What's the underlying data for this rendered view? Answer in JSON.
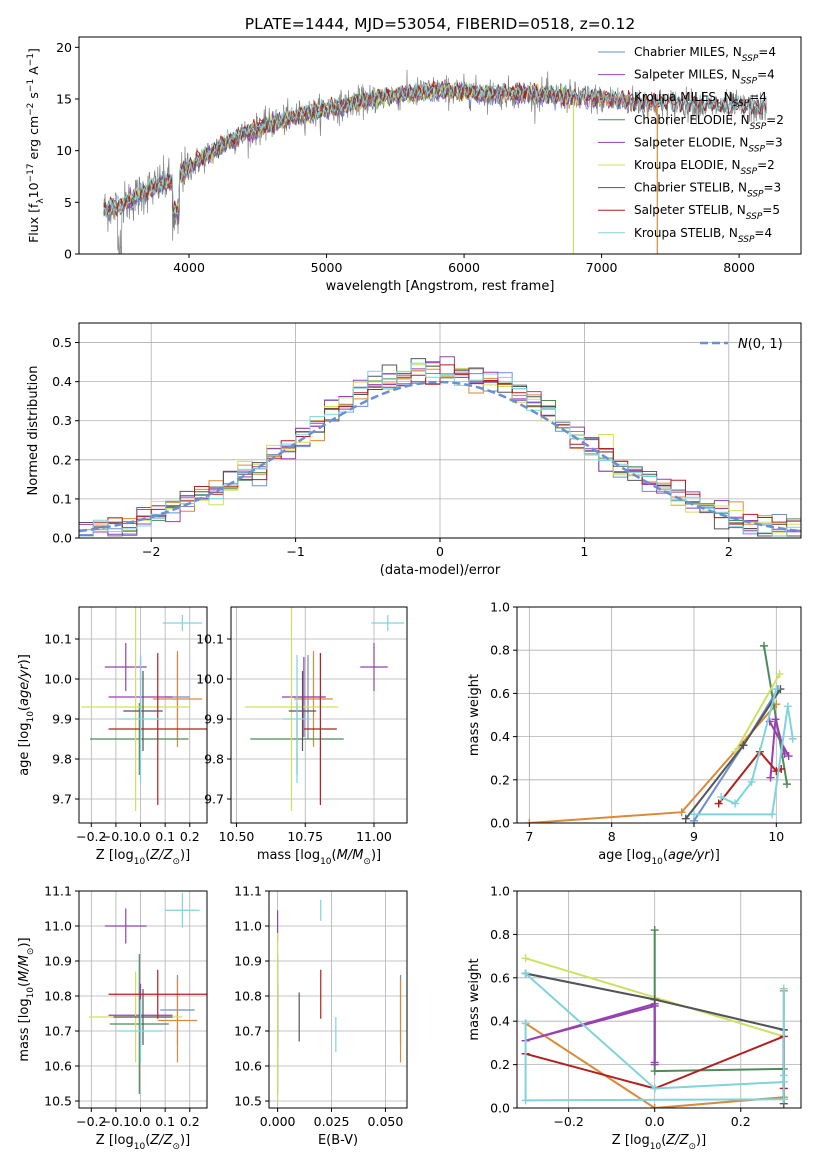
{
  "colors": {
    "Chabrier MILES": "#6a8fd4",
    "Salpeter MILES": "#8e44ad",
    "Kroupa MILES": "#d98a3a",
    "Chabrier ELODIE": "#4f8a58",
    "Salpeter ELODIE": "#9b3fb2",
    "Kroupa ELODIE": "#cfe060",
    "Chabrier STELIB": "#555555",
    "Salpeter STELIB": "#b21f1f",
    "Kroupa STELIB": "#7fd3dc",
    "gauss": "#6a8fd4",
    "grid": "#b0b0b0"
  },
  "chart_data": [
    {
      "id": "spectrum",
      "type": "line",
      "title": "PLATE=1444, MJD=53054, FIBERID=0518, z=0.12",
      "xlabel": "wavelength [Angstrom, rest frame]",
      "ylabel_parts": [
        "Flux [f",
        "λ",
        "10",
        "−17",
        " erg cm",
        "−2",
        " s",
        "−1",
        " A",
        "−1",
        "]"
      ],
      "xlim": [
        3200,
        8450
      ],
      "ylim": [
        0,
        21
      ],
      "xticks": [
        4000,
        5000,
        6000,
        7000,
        8000
      ],
      "yticks": [
        0,
        5,
        10,
        15,
        20
      ],
      "grid": false,
      "legend_position": "right",
      "series": [
        {
          "name": "Chabrier MILES",
          "nssp": "4"
        },
        {
          "name": "Salpeter MILES",
          "nssp": "4"
        },
        {
          "name": "Kroupa MILES",
          "nssp": "4"
        },
        {
          "name": "Chabrier ELODIE",
          "nssp": "2"
        },
        {
          "name": "Salpeter ELODIE",
          "nssp": "3"
        },
        {
          "name": "Kroupa ELODIE",
          "nssp": "2"
        },
        {
          "name": "Chabrier STELIB",
          "nssp": "3"
        },
        {
          "name": "Salpeter STELIB",
          "nssp": "5"
        },
        {
          "name": "Kroupa STELIB",
          "nssp": "4"
        }
      ],
      "envelope": {
        "x": [
          3380,
          3500,
          3600,
          3700,
          3800,
          3900,
          4000,
          4100,
          4200,
          4300,
          4400,
          4600,
          4800,
          5000,
          5200,
          5400,
          5600,
          5800,
          6000,
          6200,
          6400,
          6600,
          6800,
          7000,
          7200,
          7400,
          7600,
          7800,
          8000,
          8200
        ],
        "y": [
          4.3,
          4.6,
          5.4,
          6.2,
          6.8,
          7.2,
          8.4,
          9.3,
          10.2,
          11.0,
          11.6,
          12.6,
          13.4,
          14.0,
          14.6,
          15.2,
          15.5,
          15.8,
          15.7,
          15.5,
          15.6,
          15.4,
          15.2,
          15.0,
          14.8,
          14.6,
          14.5,
          14.3,
          14.2,
          14.0
        ]
      },
      "data_noise_amplitude": 1.2
    },
    {
      "id": "residuals",
      "type": "area",
      "xlabel": "(data-model)/error",
      "ylabel": "Normed distribution",
      "xlim": [
        -2.5,
        2.5
      ],
      "ylim": [
        0,
        0.55
      ],
      "xticks": [
        -2,
        -1,
        0,
        1,
        2
      ],
      "yticks": [
        0.0,
        0.1,
        0.2,
        0.3,
        0.4,
        0.5
      ],
      "grid": true,
      "legend_position": "top-right",
      "legend_label": "N(0, 1)",
      "bin_width": 0.1,
      "histtype": "step"
    },
    {
      "id": "age-vs-Z",
      "type": "scatter",
      "xlabel": "Z [log10(Z/Z⊙)]",
      "ylabel": "age  [log10(age/yr)]",
      "xlim": [
        -0.25,
        0.27
      ],
      "ylim": [
        9.64,
        10.18
      ],
      "xticks": [
        -0.2,
        -0.1,
        0.0,
        0.1,
        0.2
      ],
      "yticks": [
        9.7,
        9.8,
        9.9,
        10.0,
        10.1
      ],
      "grid": true,
      "points": [
        {
          "series": "Chabrier MILES",
          "x": 0.15,
          "xerr": 0.05,
          "y": 9.955,
          "yerr": 0.105
        },
        {
          "series": "Salpeter MILES",
          "x": -0.06,
          "xerr": 0.085,
          "y": 10.03,
          "yerr": 0.06
        },
        {
          "series": "Kroupa MILES",
          "x": 0.15,
          "xerr": 0.1,
          "y": 9.95,
          "yerr": 0.12
        },
        {
          "series": "Chabrier ELODIE",
          "x": -0.005,
          "xerr": 0.2,
          "y": 9.85,
          "yerr": 0.09
        },
        {
          "series": "Salpeter ELODIE",
          "x": 0.0,
          "xerr": 0.13,
          "y": 9.955,
          "yerr": 0.1
        },
        {
          "series": "Kroupa ELODIE",
          "x": -0.02,
          "xerr": 0.22,
          "y": 9.93,
          "yerr": 0.26
        },
        {
          "series": "Chabrier STELIB",
          "x": 0.01,
          "xerr": 0.08,
          "y": 9.92,
          "yerr": 0.1
        },
        {
          "series": "Salpeter STELIB",
          "x": 0.07,
          "xerr": 0.2,
          "y": 9.875,
          "yerr": 0.19
        },
        {
          "series": "Kroupa STELIB",
          "x": 0.0,
          "xerr": 0.09,
          "y": 9.9,
          "yerr": 0.16
        },
        {
          "series": "Kroupa STELIB",
          "x": 0.17,
          "xerr": 0.08,
          "y": 10.14,
          "yerr": 0.02
        }
      ]
    },
    {
      "id": "age-vs-mass",
      "type": "scatter",
      "xlabel": "mass [log10(M/M⊙)]",
      "ylabel": "",
      "xlim": [
        10.48,
        11.12
      ],
      "ylim": [
        9.64,
        10.18
      ],
      "xticks": [
        10.5,
        10.75,
        11.0
      ],
      "tick_labels": [
        "10.50",
        "10.75",
        "11.00"
      ],
      "yticks": [
        9.7,
        9.8,
        9.9,
        10.0,
        10.1
      ],
      "grid": true,
      "points": [
        {
          "series": "Chabrier MILES",
          "x": 10.76,
          "xerr": 0.06,
          "y": 9.955,
          "yerr": 0.105
        },
        {
          "series": "Salpeter MILES",
          "x": 11.0,
          "xerr": 0.05,
          "y": 10.03,
          "yerr": 0.06
        },
        {
          "series": "Kroupa MILES",
          "x": 10.78,
          "xerr": 0.07,
          "y": 9.95,
          "yerr": 0.12
        },
        {
          "series": "Chabrier ELODIE",
          "x": 10.72,
          "xerr": 0.17,
          "y": 9.85,
          "yerr": 0.09
        },
        {
          "series": "Salpeter ELODIE",
          "x": 10.745,
          "xerr": 0.08,
          "y": 9.955,
          "yerr": 0.1
        },
        {
          "series": "Kroupa ELODIE",
          "x": 10.7,
          "xerr": 0.17,
          "y": 9.93,
          "yerr": 0.26
        },
        {
          "series": "Chabrier STELIB",
          "x": 10.74,
          "xerr": 0.05,
          "y": 9.92,
          "yerr": 0.1
        },
        {
          "series": "Salpeter STELIB",
          "x": 10.805,
          "xerr": 0.06,
          "y": 9.875,
          "yerr": 0.19
        },
        {
          "series": "Kroupa STELIB",
          "x": 10.72,
          "xerr": 0.05,
          "y": 9.9,
          "yerr": 0.16
        },
        {
          "series": "Kroupa STELIB",
          "x": 11.05,
          "xerr": 0.06,
          "y": 10.14,
          "yerr": 0.02
        }
      ]
    },
    {
      "id": "weight-vs-age",
      "type": "line",
      "xlabel": "age  [log10(age/yr)]",
      "ylabel": "mass weight",
      "xlim": [
        6.85,
        10.3
      ],
      "ylim": [
        0,
        1
      ],
      "xticks": [
        7,
        8,
        9,
        10
      ],
      "yticks": [
        0.0,
        0.2,
        0.4,
        0.6,
        0.8,
        1.0
      ],
      "grid": true,
      "series": [
        {
          "name": "Chabrier MILES",
          "x": [
            9.0,
            9.6,
            10.02
          ],
          "y": [
            0.01,
            0.36,
            0.62
          ]
        },
        {
          "name": "Salpeter MILES",
          "x": [
            9.92,
            10.15
          ],
          "y": [
            0.47,
            0.31
          ]
        },
        {
          "name": "Kroupa MILES",
          "x": [
            7.0,
            8.85,
            10.0
          ],
          "y": [
            0.0,
            0.05,
            0.55
          ]
        },
        {
          "name": "Chabrier ELODIE",
          "x": [
            9.85,
            10.13
          ],
          "y": [
            0.82,
            0.18
          ]
        },
        {
          "name": "Salpeter ELODIE",
          "x": [
            9.93,
            9.99,
            10.1
          ],
          "y": [
            0.21,
            0.48,
            0.32
          ]
        },
        {
          "name": "Kroupa ELODIE",
          "x": [
            9.5,
            10.04
          ],
          "y": [
            0.33,
            0.69
          ]
        },
        {
          "name": "Chabrier STELIB",
          "x": [
            8.9,
            9.6,
            10.05
          ],
          "y": [
            0.02,
            0.36,
            0.62
          ]
        },
        {
          "name": "Salpeter STELIB",
          "x": [
            9.3,
            9.8,
            10.0,
            10.06
          ],
          "y": [
            0.09,
            0.33,
            0.24,
            0.25
          ]
        },
        {
          "name": "Kroupa STELIB",
          "x": [
            9.33,
            9.5,
            9.7,
            10.0
          ],
          "y": [
            0.12,
            0.09,
            0.19,
            0.62
          ]
        },
        {
          "name": "Kroupa STELIB",
          "x": [
            9.0,
            9.95,
            10.14,
            10.2
          ],
          "y": [
            0.04,
            0.04,
            0.54,
            0.39
          ]
        }
      ]
    },
    {
      "id": "mass-vs-Z",
      "type": "scatter",
      "xlabel": "Z [log10(Z/Z⊙)]",
      "ylabel": "mass [log10(M/M⊙)]",
      "xlim": [
        -0.25,
        0.27
      ],
      "ylim": [
        10.48,
        11.1
      ],
      "xticks": [
        -0.2,
        -0.1,
        0.0,
        0.1,
        0.2
      ],
      "yticks": [
        10.5,
        10.6,
        10.7,
        10.8,
        10.9,
        11.0,
        11.1
      ],
      "grid": true,
      "points": [
        {
          "series": "Chabrier MILES",
          "x": 0.15,
          "xerr": 0.07,
          "y": 10.76,
          "yerr": 0.1
        },
        {
          "series": "Salpeter MILES",
          "x": -0.06,
          "xerr": 0.085,
          "y": 11.0,
          "yerr": 0.05
        },
        {
          "series": "Kroupa MILES",
          "x": 0.15,
          "xerr": 0.08,
          "y": 10.73,
          "yerr": 0.12
        },
        {
          "series": "Chabrier ELODIE",
          "x": -0.005,
          "xerr": 0.12,
          "y": 10.72,
          "yerr": 0.2
        },
        {
          "series": "Salpeter ELODIE",
          "x": 0.0,
          "xerr": 0.13,
          "y": 10.745,
          "yerr": 0.09
        },
        {
          "series": "Kroupa ELODIE",
          "x": -0.02,
          "xerr": 0.19,
          "y": 10.74,
          "yerr": 0.13
        },
        {
          "series": "Chabrier STELIB",
          "x": 0.01,
          "xerr": 0.12,
          "y": 10.74,
          "yerr": 0.08
        },
        {
          "series": "Salpeter STELIB",
          "x": 0.07,
          "xerr": 0.2,
          "y": 10.805,
          "yerr": 0.07
        },
        {
          "series": "Kroupa STELIB",
          "x": 0.0,
          "xerr": 0.09,
          "y": 10.7,
          "yerr": 0.09
        },
        {
          "series": "Kroupa STELIB",
          "x": 0.17,
          "xerr": 0.07,
          "y": 11.045,
          "yerr": 0.05
        }
      ]
    },
    {
      "id": "mass-vs-EBV",
      "type": "scatter",
      "xlabel": "E(B-V)",
      "ylabel": "",
      "xlim": [
        -0.004,
        0.06
      ],
      "ylim": [
        10.48,
        11.1
      ],
      "xticks": [
        0.0,
        0.025,
        0.05
      ],
      "tick_labels": [
        "0.000",
        "0.025",
        "0.050"
      ],
      "yticks": [
        10.5,
        10.6,
        10.7,
        10.8,
        10.9,
        11.0,
        11.1
      ],
      "grid": true,
      "points": [
        {
          "series": "Chabrier MILES",
          "x": 0.057,
          "xerr": 0,
          "y": 10.76,
          "yerr": 0.1
        },
        {
          "series": "Salpeter MILES",
          "x": 0.0,
          "xerr": 0,
          "y": 11.0,
          "yerr": 0.045
        },
        {
          "series": "Kroupa MILES",
          "x": 0.057,
          "xerr": 0,
          "y": 10.73,
          "yerr": 0.12
        },
        {
          "series": "Chabrier ELODIE",
          "x": 0.0,
          "xerr": 0,
          "y": 10.72,
          "yerr": 0.2
        },
        {
          "series": "Salpeter ELODIE",
          "x": 0.0,
          "xerr": 0,
          "y": 10.745,
          "yerr": 0.09
        },
        {
          "series": "Kroupa ELODIE",
          "x": 0.0,
          "xerr": 0,
          "y": 10.74,
          "yerr": 0.24
        },
        {
          "series": "Chabrier STELIB",
          "x": 0.01,
          "xerr": 0,
          "y": 10.74,
          "yerr": 0.07
        },
        {
          "series": "Salpeter STELIB",
          "x": 0.02,
          "xerr": 0,
          "y": 10.805,
          "yerr": 0.07
        },
        {
          "series": "Kroupa STELIB",
          "x": 0.027,
          "xerr": 0,
          "y": 10.69,
          "yerr": 0.05
        },
        {
          "series": "Kroupa STELIB",
          "x": 0.02,
          "xerr": 0,
          "y": 11.045,
          "yerr": 0.03
        }
      ]
    },
    {
      "id": "weight-vs-Z",
      "type": "line",
      "xlabel": "Z [log10(Z/Z⊙)]",
      "ylabel": "mass weight",
      "xlim": [
        -0.32,
        0.34
      ],
      "ylim": [
        0,
        1
      ],
      "xticks": [
        -0.2,
        0.0,
        0.2
      ],
      "yticks": [
        0.0,
        0.2,
        0.4,
        0.6,
        0.8,
        1.0
      ],
      "grid": true,
      "series": [
        {
          "name": "Chabrier MILES",
          "x": [
            -0.3,
            0.0,
            0.3
          ],
          "y": [
            0.62,
            0.5,
            0.36
          ]
        },
        {
          "name": "Salpeter MILES",
          "x": [
            -0.3,
            0.0,
            0.0
          ],
          "y": [
            0.31,
            0.47,
            0.2
          ]
        },
        {
          "name": "Kroupa MILES",
          "x": [
            -0.3,
            0.0,
            0.3,
            0.3
          ],
          "y": [
            0.39,
            0.0,
            0.05,
            0.54
          ]
        },
        {
          "name": "Chabrier ELODIE",
          "x": [
            0.0,
            0.0,
            0.3,
            0.3
          ],
          "y": [
            0.82,
            0.17,
            0.18,
            0.04
          ]
        },
        {
          "name": "Salpeter ELODIE",
          "x": [
            -0.3,
            0.0,
            0.0
          ],
          "y": [
            0.31,
            0.48,
            0.21
          ]
        },
        {
          "name": "Kroupa ELODIE",
          "x": [
            -0.3,
            0.3
          ],
          "y": [
            0.69,
            0.33
          ]
        },
        {
          "name": "Chabrier STELIB",
          "x": [
            -0.3,
            0.0,
            0.3,
            0.3
          ],
          "y": [
            0.62,
            0.5,
            0.36,
            0.02
          ]
        },
        {
          "name": "Salpeter STELIB",
          "x": [
            -0.3,
            0.0,
            0.3,
            0.3
          ],
          "y": [
            0.25,
            0.09,
            0.33,
            0.09
          ]
        },
        {
          "name": "Kroupa STELIB",
          "x": [
            -0.3,
            0.0,
            0.3,
            0.3
          ],
          "y": [
            0.62,
            0.09,
            0.12,
            0.15
          ]
        },
        {
          "name": "Kroupa STELIB",
          "x": [
            -0.3,
            -0.3,
            0.3,
            0.3
          ],
          "y": [
            0.39,
            0.035,
            0.04,
            0.55
          ]
        }
      ]
    }
  ]
}
